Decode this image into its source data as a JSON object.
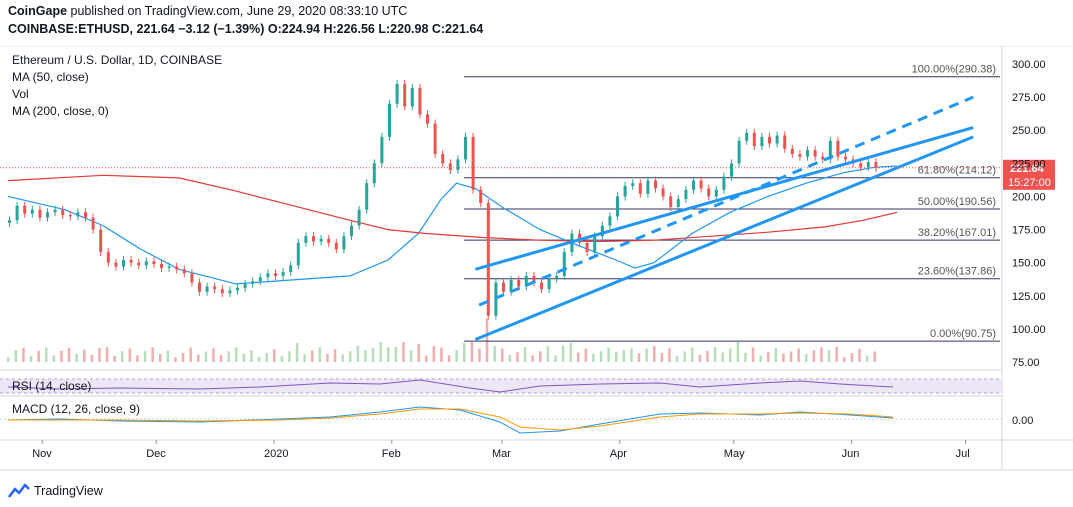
{
  "header": {
    "publisher": "CoinGape",
    "published_text": "published on TradingView.com, June 29, 2020 08:33:10 UTC",
    "symbol": "COINBASE:ETHUSD,",
    "last": "221.64",
    "change": "−3.12 (−1.39%)",
    "ohlc": "O:224.94 H:226.56 L:220.98 C:221.64"
  },
  "legend": {
    "title": "Ethereum / U.S. Dollar, 1D, COINBASE",
    "ma50": "MA (50, close)",
    "vol": "Vol",
    "ma200": "MA (200, close, 0)",
    "rsi": "RSI (14, close)",
    "macd": "MACD (12, 26, close, 9)"
  },
  "price_tag": {
    "price": "221.64",
    "countdown": "15:27:00"
  },
  "footer": {
    "brand": "TradingView"
  },
  "colors": {
    "up": "#26a69a",
    "down": "#ef5350",
    "ma50": "#2196f3",
    "ma200": "#e53935",
    "channel": "#2196f3",
    "rsi": "#7e57c2",
    "fib": "#333366"
  },
  "chart_data": {
    "type": "candlestick",
    "title": "Ethereum / U.S. Dollar, 1D, COINBASE",
    "price_axis": {
      "min": 75,
      "max": 300,
      "ticks": [
        300,
        275,
        250,
        225,
        200,
        175,
        150,
        125,
        100,
        75
      ],
      "tick_labels": [
        "300.00",
        "275.00",
        "250.00",
        "225.00",
        "200.00",
        "175.00",
        "150.00",
        "125.00",
        "100.00",
        "75.00"
      ]
    },
    "time_axis": {
      "labels": [
        "Nov",
        "Dec",
        "2020",
        "Feb",
        "Mar",
        "Apr",
        "May",
        "Jun",
        "Jul"
      ],
      "label_days": [
        9,
        39,
        70,
        101,
        130,
        161,
        191,
        222,
        252
      ]
    },
    "fib_levels": [
      {
        "label": "100.00%(290.38)",
        "value": 290.38
      },
      {
        "label": "61.80%(214.12)",
        "value": 214.12
      },
      {
        "label": "50.00%(190.56)",
        "value": 190.56
      },
      {
        "label": "38.20%(167.01)",
        "value": 167.01
      },
      {
        "label": "23.60%(137.86)",
        "value": 137.86
      },
      {
        "label": "0.00%(90.75)",
        "value": 90.75
      }
    ],
    "channel": [
      {
        "name": "upper",
        "style": "solid",
        "from": [
          123,
          145
        ],
        "to": [
          254,
          252
        ]
      },
      {
        "name": "middle",
        "style": "dashed",
        "from": [
          124,
          118
        ],
        "to": [
          254,
          275
        ]
      },
      {
        "name": "lower",
        "style": "solid",
        "from": [
          123,
          92
        ],
        "to": [
          254,
          245
        ]
      }
    ],
    "ma_series": [
      {
        "name": "MA 50",
        "points": [
          [
            0,
            200
          ],
          [
            15,
            190
          ],
          [
            25,
            178
          ],
          [
            35,
            160
          ],
          [
            45,
            145
          ],
          [
            60,
            134
          ],
          [
            75,
            137
          ],
          [
            90,
            140
          ],
          [
            100,
            152
          ],
          [
            108,
            172
          ],
          [
            114,
            198
          ],
          [
            118,
            210
          ],
          [
            123,
            206
          ],
          [
            130,
            192
          ],
          [
            140,
            175
          ],
          [
            150,
            163
          ],
          [
            160,
            152
          ],
          [
            165,
            146
          ],
          [
            170,
            150
          ],
          [
            180,
            172
          ],
          [
            190,
            188
          ],
          [
            200,
            200
          ],
          [
            210,
            210
          ],
          [
            220,
            218
          ],
          [
            228,
            222
          ],
          [
            234,
            223
          ]
        ]
      },
      {
        "name": "MA 200",
        "points": [
          [
            0,
            212
          ],
          [
            25,
            216
          ],
          [
            45,
            214
          ],
          [
            60,
            204
          ],
          [
            75,
            193
          ],
          [
            90,
            182
          ],
          [
            100,
            175
          ],
          [
            110,
            172
          ],
          [
            125,
            169
          ],
          [
            140,
            167
          ],
          [
            155,
            166
          ],
          [
            170,
            167
          ],
          [
            185,
            170
          ],
          [
            200,
            173
          ],
          [
            215,
            177
          ],
          [
            225,
            182
          ],
          [
            234,
            188
          ]
        ]
      }
    ],
    "candles": [
      {
        "x": 0,
        "o": 180,
        "c": 182
      },
      {
        "x": 2,
        "o": 182,
        "c": 193
      },
      {
        "x": 4,
        "o": 193,
        "c": 187
      },
      {
        "x": 6,
        "o": 187,
        "c": 190
      },
      {
        "x": 8,
        "o": 190,
        "c": 184
      },
      {
        "x": 10,
        "o": 184,
        "c": 188
      },
      {
        "x": 12,
        "o": 188,
        "c": 190
      },
      {
        "x": 14,
        "o": 190,
        "c": 186
      },
      {
        "x": 16,
        "o": 186,
        "c": 185
      },
      {
        "x": 18,
        "o": 185,
        "c": 188
      },
      {
        "x": 20,
        "o": 188,
        "c": 184
      },
      {
        "x": 22,
        "o": 184,
        "c": 175
      },
      {
        "x": 24,
        "o": 175,
        "c": 158
      },
      {
        "x": 26,
        "o": 158,
        "c": 150
      },
      {
        "x": 28,
        "o": 150,
        "c": 147
      },
      {
        "x": 30,
        "o": 147,
        "c": 152
      },
      {
        "x": 32,
        "o": 152,
        "c": 150
      },
      {
        "x": 34,
        "o": 150,
        "c": 148
      },
      {
        "x": 36,
        "o": 148,
        "c": 151
      },
      {
        "x": 38,
        "o": 151,
        "c": 149
      },
      {
        "x": 40,
        "o": 149,
        "c": 146
      },
      {
        "x": 42,
        "o": 146,
        "c": 147
      },
      {
        "x": 44,
        "o": 147,
        "c": 145
      },
      {
        "x": 46,
        "o": 145,
        "c": 142
      },
      {
        "x": 48,
        "o": 142,
        "c": 135
      },
      {
        "x": 50,
        "o": 135,
        "c": 128
      },
      {
        "x": 52,
        "o": 128,
        "c": 132
      },
      {
        "x": 54,
        "o": 132,
        "c": 130
      },
      {
        "x": 56,
        "o": 130,
        "c": 127
      },
      {
        "x": 58,
        "o": 127,
        "c": 129
      },
      {
        "x": 60,
        "o": 129,
        "c": 131
      },
      {
        "x": 62,
        "o": 131,
        "c": 134
      },
      {
        "x": 64,
        "o": 134,
        "c": 136
      },
      {
        "x": 66,
        "o": 136,
        "c": 139
      },
      {
        "x": 68,
        "o": 139,
        "c": 142
      },
      {
        "x": 70,
        "o": 142,
        "c": 140
      },
      {
        "x": 72,
        "o": 140,
        "c": 143
      },
      {
        "x": 74,
        "o": 143,
        "c": 148
      },
      {
        "x": 76,
        "o": 148,
        "c": 165
      },
      {
        "x": 78,
        "o": 165,
        "c": 170
      },
      {
        "x": 80,
        "o": 170,
        "c": 166
      },
      {
        "x": 82,
        "o": 166,
        "c": 168
      },
      {
        "x": 84,
        "o": 168,
        "c": 165
      },
      {
        "x": 86,
        "o": 165,
        "c": 160
      },
      {
        "x": 88,
        "o": 160,
        "c": 170
      },
      {
        "x": 90,
        "o": 170,
        "c": 178
      },
      {
        "x": 92,
        "o": 178,
        "c": 190
      },
      {
        "x": 94,
        "o": 190,
        "c": 210
      },
      {
        "x": 96,
        "o": 210,
        "c": 225
      },
      {
        "x": 98,
        "o": 225,
        "c": 245
      },
      {
        "x": 100,
        "o": 245,
        "c": 270
      },
      {
        "x": 102,
        "o": 270,
        "c": 285
      },
      {
        "x": 104,
        "o": 285,
        "c": 268
      },
      {
        "x": 106,
        "o": 268,
        "c": 282
      },
      {
        "x": 108,
        "o": 282,
        "c": 262
      },
      {
        "x": 110,
        "o": 262,
        "c": 255
      },
      {
        "x": 112,
        "o": 255,
        "c": 232
      },
      {
        "x": 114,
        "o": 232,
        "c": 225
      },
      {
        "x": 116,
        "o": 225,
        "c": 220
      },
      {
        "x": 118,
        "o": 220,
        "c": 228
      },
      {
        "x": 120,
        "o": 228,
        "c": 245
      },
      {
        "x": 122,
        "o": 245,
        "c": 205
      },
      {
        "x": 124,
        "o": 205,
        "c": 195
      },
      {
        "x": 126,
        "o": 195,
        "c": 110
      },
      {
        "x": 128,
        "o": 110,
        "c": 135
      },
      {
        "x": 130,
        "o": 135,
        "c": 128
      },
      {
        "x": 132,
        "o": 128,
        "c": 137
      },
      {
        "x": 134,
        "o": 137,
        "c": 132
      },
      {
        "x": 136,
        "o": 132,
        "c": 140
      },
      {
        "x": 138,
        "o": 140,
        "c": 135
      },
      {
        "x": 140,
        "o": 135,
        "c": 130
      },
      {
        "x": 142,
        "o": 130,
        "c": 138
      },
      {
        "x": 144,
        "o": 138,
        "c": 140
      },
      {
        "x": 146,
        "o": 140,
        "c": 158
      },
      {
        "x": 148,
        "o": 158,
        "c": 172
      },
      {
        "x": 150,
        "o": 172,
        "c": 165
      },
      {
        "x": 152,
        "o": 165,
        "c": 158
      },
      {
        "x": 154,
        "o": 158,
        "c": 170
      },
      {
        "x": 156,
        "o": 170,
        "c": 178
      },
      {
        "x": 158,
        "o": 178,
        "c": 185
      },
      {
        "x": 160,
        "o": 185,
        "c": 200
      },
      {
        "x": 162,
        "o": 200,
        "c": 208
      },
      {
        "x": 164,
        "o": 208,
        "c": 210
      },
      {
        "x": 166,
        "o": 210,
        "c": 202
      },
      {
        "x": 168,
        "o": 202,
        "c": 212
      },
      {
        "x": 170,
        "o": 212,
        "c": 206
      },
      {
        "x": 172,
        "o": 206,
        "c": 200
      },
      {
        "x": 174,
        "o": 200,
        "c": 192
      },
      {
        "x": 176,
        "o": 192,
        "c": 198
      },
      {
        "x": 178,
        "o": 198,
        "c": 205
      },
      {
        "x": 180,
        "o": 205,
        "c": 212
      },
      {
        "x": 182,
        "o": 212,
        "c": 206
      },
      {
        "x": 184,
        "o": 206,
        "c": 200
      },
      {
        "x": 186,
        "o": 200,
        "c": 205
      },
      {
        "x": 188,
        "o": 205,
        "c": 215
      },
      {
        "x": 190,
        "o": 215,
        "c": 225
      },
      {
        "x": 192,
        "o": 225,
        "c": 242
      },
      {
        "x": 194,
        "o": 242,
        "c": 248
      },
      {
        "x": 196,
        "o": 248,
        "c": 238
      },
      {
        "x": 198,
        "o": 238,
        "c": 245
      },
      {
        "x": 200,
        "o": 245,
        "c": 240
      },
      {
        "x": 202,
        "o": 240,
        "c": 246
      },
      {
        "x": 204,
        "o": 246,
        "c": 236
      },
      {
        "x": 206,
        "o": 236,
        "c": 232
      },
      {
        "x": 208,
        "o": 232,
        "c": 230
      },
      {
        "x": 210,
        "o": 230,
        "c": 235
      },
      {
        "x": 212,
        "o": 235,
        "c": 230
      },
      {
        "x": 214,
        "o": 230,
        "c": 228
      },
      {
        "x": 216,
        "o": 228,
        "c": 242
      },
      {
        "x": 218,
        "o": 242,
        "c": 230
      },
      {
        "x": 220,
        "o": 230,
        "c": 228
      },
      {
        "x": 222,
        "o": 228,
        "c": 225
      },
      {
        "x": 224,
        "o": 225,
        "c": 222
      },
      {
        "x": 226,
        "o": 222,
        "c": 226
      },
      {
        "x": 228,
        "o": 226,
        "c": 221.64
      }
    ]
  }
}
